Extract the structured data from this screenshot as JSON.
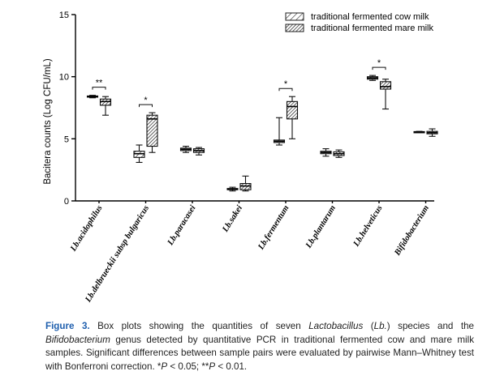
{
  "chart_data": {
    "type": "box",
    "ylabel": "Bacitera counts (Log CFU/mL)",
    "ylim": [
      0,
      15
    ],
    "yticks": [
      0,
      5,
      10,
      15
    ],
    "legend_position": "top-right",
    "categories": [
      "Lb.acidophilus",
      "Lb.delbrueckii subsp bulgaricus",
      "Lb.paracasei",
      "Lb.sakei",
      "Lb.fermentum",
      "Lb.plantarum",
      "Lb.helveticus",
      "Bifidobacterium"
    ],
    "series": [
      {
        "name": "traditional fermented cow milk",
        "pattern": "sparse-hatch",
        "boxes": [
          {
            "min": 8.3,
            "q1": 8.35,
            "median": 8.4,
            "q3": 8.45,
            "max": 8.5
          },
          {
            "min": 3.1,
            "q1": 3.5,
            "median": 3.8,
            "q3": 4.0,
            "max": 4.5
          },
          {
            "min": 3.9,
            "q1": 4.05,
            "median": 4.15,
            "q3": 4.25,
            "max": 4.4
          },
          {
            "min": 0.8,
            "q1": 0.9,
            "median": 0.95,
            "q3": 1.0,
            "max": 1.1
          },
          {
            "min": 4.5,
            "q1": 4.7,
            "median": 4.8,
            "q3": 4.9,
            "max": 6.7
          },
          {
            "min": 3.6,
            "q1": 3.8,
            "median": 3.9,
            "q3": 4.0,
            "max": 4.2
          },
          {
            "min": 9.7,
            "q1": 9.8,
            "median": 9.9,
            "q3": 10.0,
            "max": 10.1
          },
          {
            "min": 5.5,
            "q1": 5.52,
            "median": 5.55,
            "q3": 5.58,
            "max": 5.6
          }
        ]
      },
      {
        "name": "traditional fermented mare milk",
        "pattern": "dense-hatch",
        "boxes": [
          {
            "min": 6.9,
            "q1": 7.7,
            "median": 8.0,
            "q3": 8.2,
            "max": 8.4
          },
          {
            "min": 3.9,
            "q1": 4.4,
            "median": 6.6,
            "q3": 6.9,
            "max": 7.1
          },
          {
            "min": 3.7,
            "q1": 3.9,
            "median": 4.05,
            "q3": 4.2,
            "max": 4.3
          },
          {
            "min": 0.8,
            "q1": 0.9,
            "median": 1.2,
            "q3": 1.4,
            "max": 2.0
          },
          {
            "min": 5.0,
            "q1": 6.6,
            "median": 7.6,
            "q3": 8.0,
            "max": 8.4
          },
          {
            "min": 3.5,
            "q1": 3.65,
            "median": 3.8,
            "q3": 3.95,
            "max": 4.1
          },
          {
            "min": 7.4,
            "q1": 9.0,
            "median": 9.2,
            "q3": 9.6,
            "max": 9.8
          },
          {
            "min": 5.2,
            "q1": 5.4,
            "median": 5.5,
            "q3": 5.6,
            "max": 5.8
          }
        ]
      }
    ],
    "significance": [
      {
        "category": "Lb.acidophilus",
        "label": "**"
      },
      {
        "category": "Lb.delbrueckii subsp bulgaricus",
        "label": "*"
      },
      {
        "category": "Lb.fermentum",
        "label": "*"
      },
      {
        "category": "Lb.helveticus",
        "label": "*"
      }
    ]
  },
  "caption": {
    "figure_label": "Figure 3.",
    "part1": " Box plots showing the quantities of seven ",
    "genus1": "Lactobacillus",
    "part2": " (",
    "abbrev": "Lb.",
    "part3": ") species and the ",
    "genus2": "Bifidobacterium",
    "part4": " genus detected by quantitative PCR in traditional fermented cow and mare milk samples. Significant differences between sample pairs were evaluated by pairwise Mann–Whitney test with Bonferroni correction. *",
    "p1": "P",
    "part5": " < 0.05; **",
    "p2": "P",
    "part6": " < 0.01."
  }
}
